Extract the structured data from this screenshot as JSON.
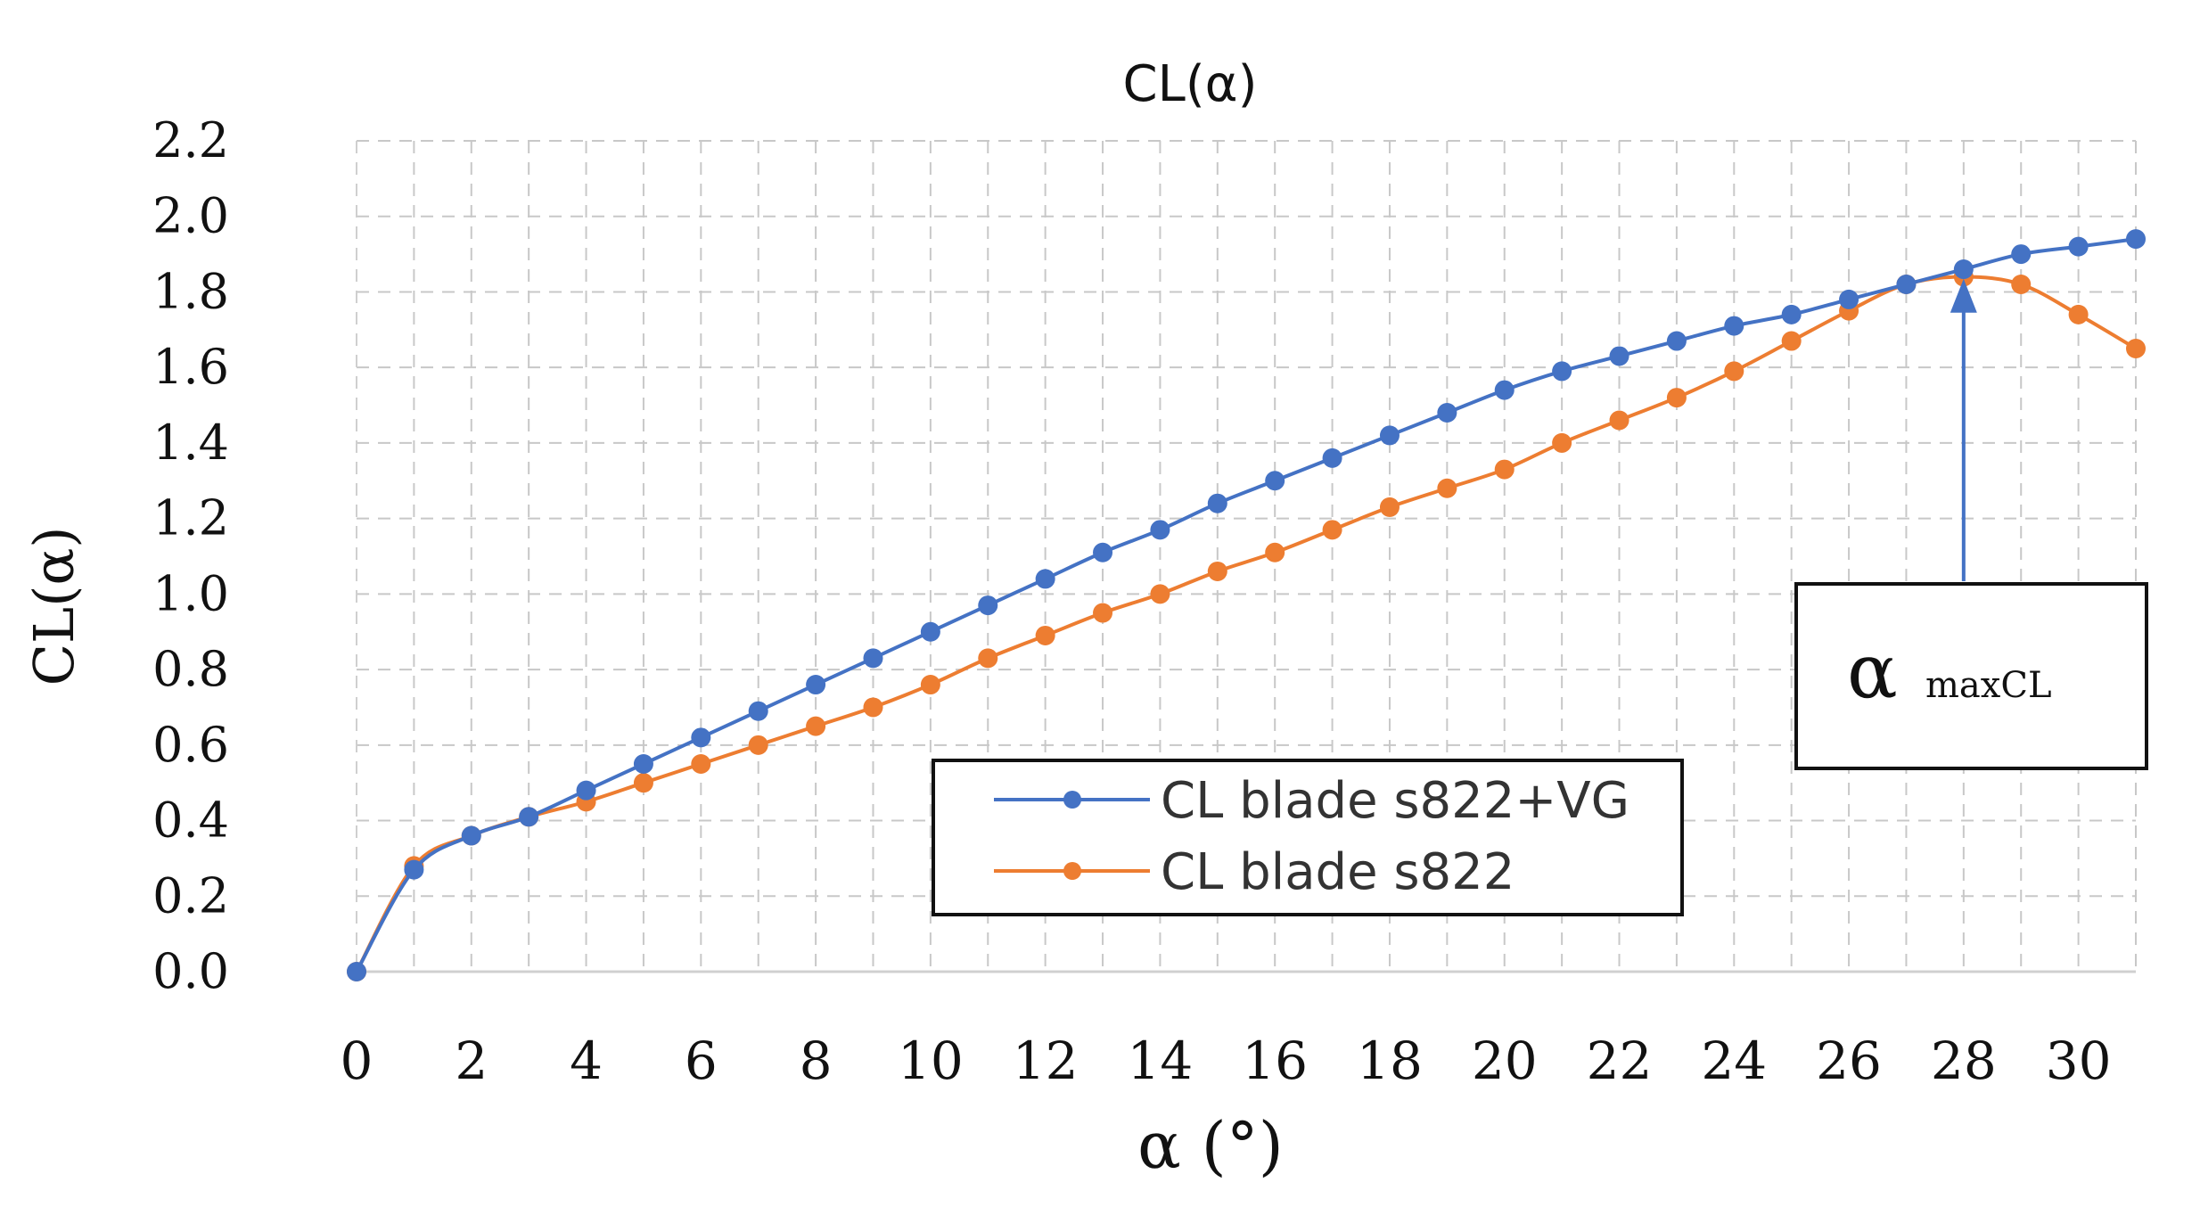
{
  "chart_data": {
    "type": "line",
    "title": "CL(α)",
    "xlabel": "α (°)",
    "ylabel": "CL(α)",
    "xlim": [
      0,
      31
    ],
    "ylim": [
      0,
      2.2
    ],
    "xticks": [
      "0",
      "2",
      "4",
      "6",
      "8",
      "10",
      "12",
      "14",
      "16",
      "18",
      "20",
      "22",
      "24",
      "26",
      "28",
      "30"
    ],
    "xtick_values": [
      0,
      2,
      4,
      6,
      8,
      10,
      12,
      14,
      16,
      18,
      20,
      22,
      24,
      26,
      28,
      30
    ],
    "yticks": [
      "0.0",
      "0.2",
      "0.4",
      "0.6",
      "0.8",
      "1.0",
      "1.2",
      "1.4",
      "1.6",
      "1.8",
      "2.0",
      "2.2"
    ],
    "ytick_values": [
      0,
      0.2,
      0.4,
      0.6,
      0.8,
      1.0,
      1.2,
      1.4,
      1.6,
      1.8,
      2.0,
      2.2
    ],
    "grid": true,
    "legend_position": "bottom-center",
    "series": [
      {
        "name": "CL blade s822+VG",
        "color": "#4472c4",
        "x": [
          0,
          1,
          2,
          3,
          4,
          5,
          6,
          7,
          8,
          9,
          10,
          11,
          12,
          13,
          14,
          15,
          16,
          17,
          18,
          19,
          20,
          21,
          22,
          23,
          24,
          25,
          26,
          27,
          28,
          29,
          30,
          31
        ],
        "values": [
          0.0,
          0.27,
          0.36,
          0.41,
          0.48,
          0.55,
          0.62,
          0.69,
          0.76,
          0.83,
          0.9,
          0.97,
          1.04,
          1.11,
          1.17,
          1.24,
          1.3,
          1.36,
          1.42,
          1.48,
          1.54,
          1.59,
          1.63,
          1.67,
          1.71,
          1.74,
          1.78,
          1.82,
          1.86,
          1.9,
          1.92,
          1.94
        ]
      },
      {
        "name": "CL blade s822",
        "color": "#ed7d31",
        "x": [
          0,
          1,
          2,
          3,
          4,
          5,
          6,
          7,
          8,
          9,
          10,
          11,
          12,
          13,
          14,
          15,
          16,
          17,
          18,
          19,
          20,
          21,
          22,
          23,
          24,
          25,
          26,
          27,
          28,
          29,
          30,
          31
        ],
        "values": [
          0.0,
          0.28,
          0.36,
          0.41,
          0.45,
          0.5,
          0.55,
          0.6,
          0.65,
          0.7,
          0.76,
          0.83,
          0.89,
          0.95,
          1.0,
          1.06,
          1.11,
          1.17,
          1.23,
          1.28,
          1.33,
          1.4,
          1.46,
          1.52,
          1.59,
          1.67,
          1.75,
          1.82,
          1.84,
          1.82,
          1.74,
          1.65
        ]
      }
    ],
    "annotation": {
      "label_main": "α",
      "label_sub": "maxCL",
      "target_x": 28,
      "target_y": 1.83
    }
  }
}
